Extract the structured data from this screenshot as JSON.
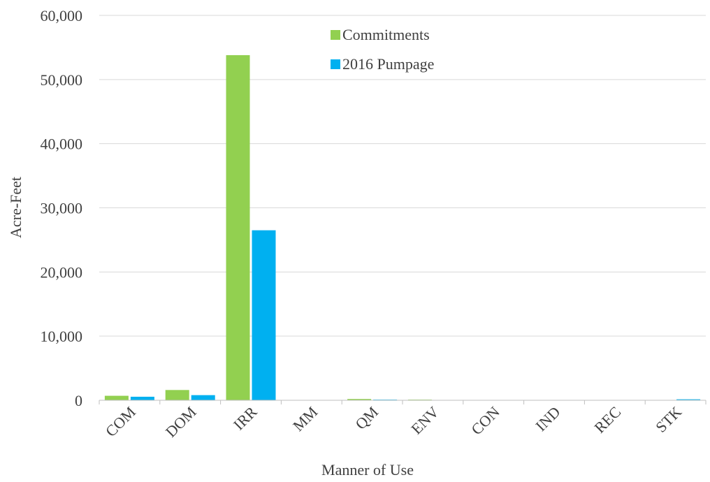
{
  "chart_data": {
    "type": "bar",
    "title": "",
    "xlabel": "Manner of Use",
    "ylabel": "Acre-Feet",
    "categories": [
      "COM",
      "DOM",
      "IRR",
      "MM",
      "QM",
      "ENV",
      "CON",
      "IND",
      "REC",
      "STK"
    ],
    "series": [
      {
        "name": "Commitments",
        "color": "#92d050",
        "values": [
          700,
          1600,
          53800,
          50,
          200,
          100,
          0,
          0,
          0,
          30
        ]
      },
      {
        "name": "2016 Pumpage",
        "color": "#00b0f0",
        "values": [
          550,
          800,
          26500,
          30,
          100,
          30,
          0,
          0,
          0,
          150
        ]
      }
    ],
    "ylim": [
      0,
      60000
    ],
    "yticks": [
      "0",
      "10,000",
      "20,000",
      "30,000",
      "40,000",
      "50,000",
      "60,000"
    ],
    "grid": true,
    "legend_position": "top-center"
  }
}
